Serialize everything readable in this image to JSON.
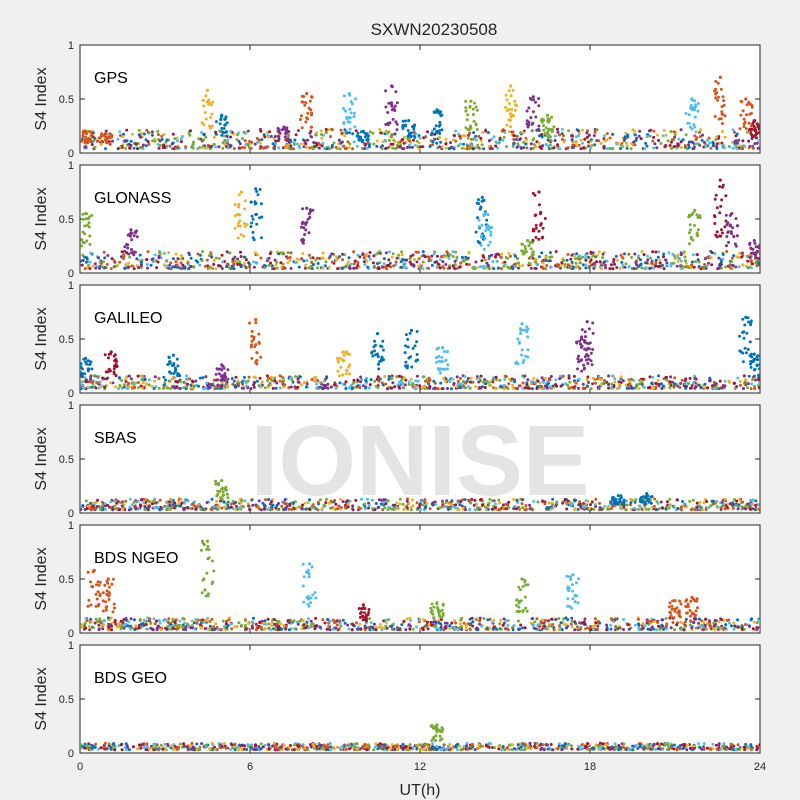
{
  "title": "SXWN20230508",
  "watermark": "IONISE",
  "colors": [
    "#0072BD",
    "#D95319",
    "#EDB120",
    "#7E2F8E",
    "#77AC30",
    "#4DBEEE",
    "#A2142F"
  ],
  "chart_data": {
    "type": "scatter",
    "title": "SXWN20230508",
    "xlabel": "UT(h)",
    "xlim": [
      0,
      24
    ],
    "xticks": [
      "0",
      "6",
      "12",
      "18",
      "24"
    ],
    "panels": [
      {
        "name": "GPS",
        "ylabel": "S4 Index",
        "ylim": [
          0,
          1
        ],
        "yticks": [
          "0",
          "0.5",
          "1"
        ],
        "baseline": [
          0.04,
          0.22
        ],
        "bursts": [
          {
            "x": 0.2,
            "y": 0.2,
            "c": 1
          },
          {
            "x": 0.9,
            "y": 0.18,
            "c": 1
          },
          {
            "x": 4.5,
            "y": 0.58,
            "c": 2
          },
          {
            "x": 5.0,
            "y": 0.35,
            "c": 0
          },
          {
            "x": 7.2,
            "y": 0.24,
            "c": 3
          },
          {
            "x": 8.0,
            "y": 0.55,
            "c": 1
          },
          {
            "x": 9.5,
            "y": 0.55,
            "c": 5
          },
          {
            "x": 10.0,
            "y": 0.2,
            "c": 0
          },
          {
            "x": 11.0,
            "y": 0.62,
            "c": 3
          },
          {
            "x": 11.6,
            "y": 0.3,
            "c": 0
          },
          {
            "x": 12.6,
            "y": 0.4,
            "c": 0
          },
          {
            "x": 13.8,
            "y": 0.48,
            "c": 4
          },
          {
            "x": 15.2,
            "y": 0.62,
            "c": 2
          },
          {
            "x": 16.0,
            "y": 0.52,
            "c": 3
          },
          {
            "x": 16.5,
            "y": 0.35,
            "c": 4
          },
          {
            "x": 21.6,
            "y": 0.5,
            "c": 5
          },
          {
            "x": 22.6,
            "y": 0.7,
            "c": 1
          },
          {
            "x": 23.5,
            "y": 0.5,
            "c": 1
          },
          {
            "x": 23.8,
            "y": 0.3,
            "c": 6
          }
        ]
      },
      {
        "name": "GLONASS",
        "ylabel": "S4 Index",
        "ylim": [
          0,
          1
        ],
        "yticks": [
          "0",
          "0.5",
          "1"
        ],
        "baseline": [
          0.04,
          0.2
        ],
        "bursts": [
          {
            "x": 0.2,
            "y": 0.55,
            "c": 4
          },
          {
            "x": 1.8,
            "y": 0.4,
            "c": 3
          },
          {
            "x": 5.7,
            "y": 0.75,
            "c": 2
          },
          {
            "x": 6.2,
            "y": 0.78,
            "c": 0
          },
          {
            "x": 8.0,
            "y": 0.6,
            "c": 3
          },
          {
            "x": 14.2,
            "y": 0.7,
            "c": 0
          },
          {
            "x": 14.3,
            "y": 0.55,
            "c": 5
          },
          {
            "x": 15.8,
            "y": 0.3,
            "c": 4
          },
          {
            "x": 16.2,
            "y": 0.75,
            "c": 6
          },
          {
            "x": 21.7,
            "y": 0.58,
            "c": 4
          },
          {
            "x": 22.6,
            "y": 0.86,
            "c": 6
          },
          {
            "x": 23.0,
            "y": 0.55,
            "c": 3
          },
          {
            "x": 23.8,
            "y": 0.3,
            "c": 3
          }
        ]
      },
      {
        "name": "GALILEO",
        "ylabel": "S4 Index",
        "ylim": [
          0,
          1
        ],
        "yticks": [
          "0",
          "0.5",
          "1"
        ],
        "baseline": [
          0.04,
          0.16
        ],
        "bursts": [
          {
            "x": 0.2,
            "y": 0.32,
            "c": 0
          },
          {
            "x": 1.1,
            "y": 0.38,
            "c": 6
          },
          {
            "x": 3.3,
            "y": 0.35,
            "c": 0
          },
          {
            "x": 5.0,
            "y": 0.26,
            "c": 3
          },
          {
            "x": 6.2,
            "y": 0.68,
            "c": 1
          },
          {
            "x": 9.3,
            "y": 0.38,
            "c": 2
          },
          {
            "x": 10.5,
            "y": 0.55,
            "c": 0
          },
          {
            "x": 11.7,
            "y": 0.58,
            "c": 0
          },
          {
            "x": 12.8,
            "y": 0.42,
            "c": 5
          },
          {
            "x": 15.6,
            "y": 0.64,
            "c": 5
          },
          {
            "x": 17.7,
            "y": 0.5,
            "c": 3
          },
          {
            "x": 17.9,
            "y": 0.66,
            "c": 3
          },
          {
            "x": 23.5,
            "y": 0.7,
            "c": 0
          },
          {
            "x": 23.8,
            "y": 0.36,
            "c": 0
          }
        ]
      },
      {
        "name": "SBAS",
        "ylabel": "S4 Index",
        "ylim": [
          0,
          1
        ],
        "yticks": [
          "0",
          "0.5",
          "1"
        ],
        "baseline": [
          0.03,
          0.13
        ],
        "bursts": [
          {
            "x": 5.0,
            "y": 0.3,
            "c": 4
          },
          {
            "x": 20.0,
            "y": 0.18,
            "c": 0
          },
          {
            "x": 19.0,
            "y": 0.16,
            "c": 0
          }
        ]
      },
      {
        "name": "BDS NGEO",
        "ylabel": "S4 Index",
        "ylim": [
          0,
          1
        ],
        "yticks": [
          "0",
          "0.5",
          "1"
        ],
        "baseline": [
          0.03,
          0.14
        ],
        "bursts": [
          {
            "x": 0.5,
            "y": 0.58,
            "c": 1
          },
          {
            "x": 1.0,
            "y": 0.5,
            "c": 1
          },
          {
            "x": 4.5,
            "y": 0.85,
            "c": 4
          },
          {
            "x": 8.1,
            "y": 0.64,
            "c": 5
          },
          {
            "x": 10.0,
            "y": 0.26,
            "c": 6
          },
          {
            "x": 12.6,
            "y": 0.28,
            "c": 4
          },
          {
            "x": 15.6,
            "y": 0.5,
            "c": 4
          },
          {
            "x": 17.4,
            "y": 0.54,
            "c": 5
          },
          {
            "x": 21.0,
            "y": 0.3,
            "c": 1
          },
          {
            "x": 21.6,
            "y": 0.33,
            "c": 1
          }
        ]
      },
      {
        "name": "BDS GEO",
        "ylabel": "S4 Index",
        "ylim": [
          0,
          1
        ],
        "yticks": [
          "0",
          "0.5",
          "1"
        ],
        "baseline": [
          0.03,
          0.09
        ],
        "bursts": [
          {
            "x": 12.6,
            "y": 0.26,
            "c": 4
          }
        ]
      }
    ]
  }
}
